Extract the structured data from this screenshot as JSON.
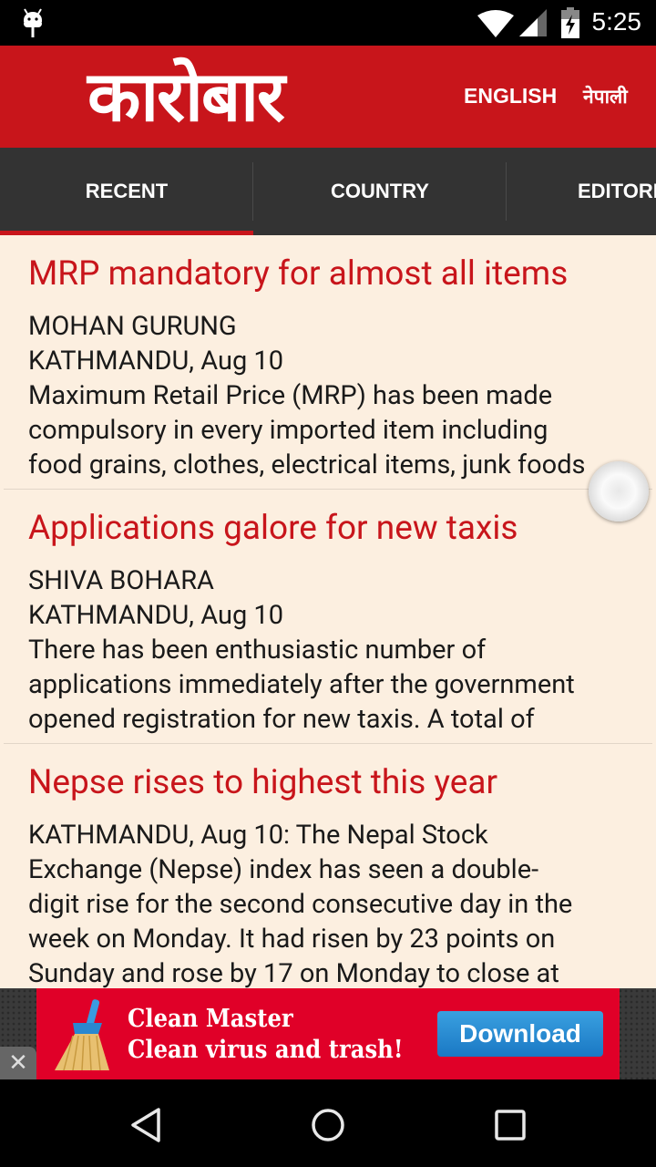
{
  "status_bar": {
    "time": "5:25",
    "icons": [
      "android-debug-icon",
      "wifi-icon",
      "signal-icon",
      "battery-charging-icon"
    ]
  },
  "header": {
    "logo": "कारोबार",
    "languages": [
      "ENGLISH",
      "नेपाली"
    ]
  },
  "tabs": [
    {
      "label": "RECENT",
      "active": true
    },
    {
      "label": "COUNTRY"
    },
    {
      "label": "EDITORIAL"
    }
  ],
  "articles": [
    {
      "title": "MRP mandatory for almost all items",
      "lines": [
        "MOHAN GURUNG",
        "KATHMANDU, Aug 10",
        "Maximum Retail Price (MRP) has been made",
        "compulsory in every imported item including",
        "food grains, clothes, electrical items, junk foods"
      ]
    },
    {
      "title": "Applications galore for new taxis",
      "lines": [
        "SHIVA BOHARA",
        "KATHMANDU, Aug 10",
        "There has been enthusiastic number of",
        "applications immediately after the government",
        "opened registration for new taxis. A total of"
      ]
    },
    {
      "title": "Nepse rises to highest this year",
      "lines": [
        "KATHMANDU, Aug 10: The Nepal Stock",
        "Exchange (Nepse) index has seen a double-",
        "digit rise for the second consecutive day in the",
        "week on Monday. It had risen by 23 points on",
        "Sunday and rose by 17 on Monday to close at"
      ]
    }
  ],
  "ad": {
    "line1": "Clean Master",
    "line2": "Clean virus and trash!",
    "button": "Download",
    "close": "✕"
  },
  "colors": {
    "brand_red": "#c8151b",
    "tab_bar": "#333333",
    "background": "#fcefe0",
    "ad_red": "#e00028",
    "download_blue": "#1a78c4"
  }
}
